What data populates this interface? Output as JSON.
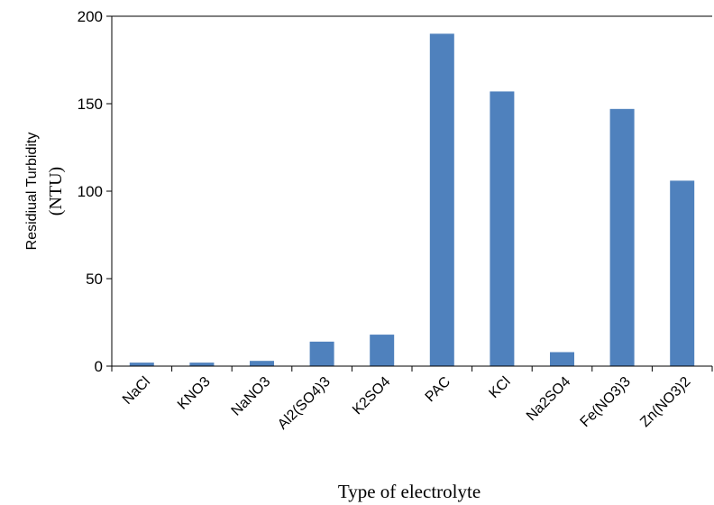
{
  "chart_data": {
    "type": "bar",
    "categories": [
      "NaCl",
      "KNO3",
      "NaNO3",
      "Al2(SO4)3",
      "K2SO4",
      "PAC",
      "KCl",
      "Na2SO4",
      "Fe(NO3)3",
      "Zn(NO3)2"
    ],
    "series": [
      {
        "values": [
          2,
          2,
          3,
          14,
          18,
          190,
          157,
          8,
          147,
          106
        ]
      }
    ],
    "title": "",
    "xlabel": "Type of electrolyte",
    "ylabel_lines": [
      "Residiual Turbidity",
      "(NTU)"
    ],
    "ylim": [
      0,
      200
    ],
    "yticks": [
      0,
      50,
      100,
      150,
      200
    ],
    "bar_color": "#4F81BD",
    "grid": false,
    "legend": "none"
  }
}
